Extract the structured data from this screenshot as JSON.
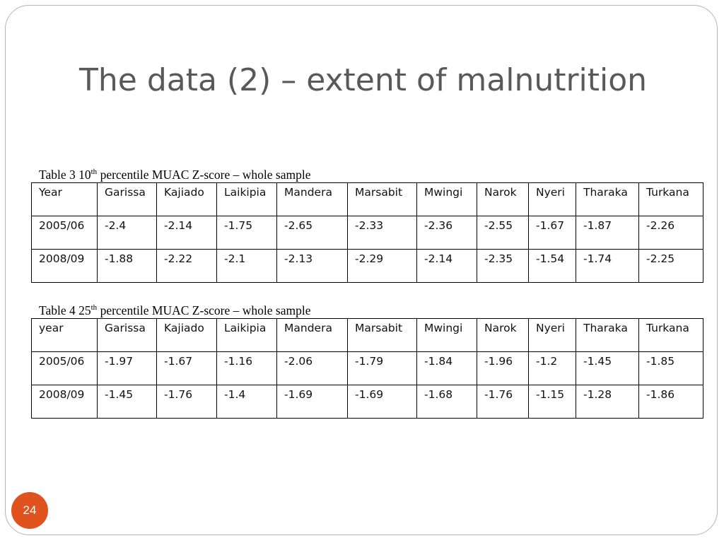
{
  "slide": {
    "title": "The data (2) – extent of malnutrition",
    "page_number": "24"
  },
  "table3": {
    "caption_prefix": "Table 3 10",
    "caption_sup": "th",
    "caption_suffix": " percentile MUAC Z-score – whole sample",
    "columns": [
      "Year",
      "Garissa",
      "Kajiado",
      "Laikipia",
      "Mandera",
      "Marsabit",
      "Mwingi",
      "Narok",
      "Nyeri",
      "Tharaka",
      "Turkana"
    ],
    "rows": [
      [
        "2005/06",
        "-2.4",
        "-2.14",
        "-1.75",
        "-2.65",
        "-2.33",
        "-2.36",
        "-2.55",
        "-1.67",
        "-1.87",
        "-2.26"
      ],
      [
        "2008/09",
        "-1.88",
        "-2.22",
        "-2.1",
        "-2.13",
        "-2.29",
        "-2.14",
        "-2.35",
        "-1.54",
        "-1.74",
        "-2.25"
      ]
    ]
  },
  "table4": {
    "caption_prefix": "Table 4 25",
    "caption_sup": "th",
    "caption_suffix": " percentile MUAC Z-score – whole sample",
    "columns": [
      "year",
      "Garissa",
      "Kajiado",
      "Laikipia",
      "Mandera",
      "Marsabit",
      "Mwingi",
      "Narok",
      "Nyeri",
      "Tharaka",
      "Turkana"
    ],
    "rows": [
      [
        "2005/06",
        "-1.97",
        "-1.67",
        "-1.16",
        "-2.06",
        "-1.79",
        "-1.84",
        "-1.96",
        "-1.2",
        "-1.45",
        "-1.85"
      ],
      [
        "2008/09",
        "-1.45",
        "-1.76",
        "-1.4",
        "-1.69",
        "-1.69",
        "-1.68",
        "-1.76",
        "-1.15",
        "-1.28",
        "-1.86"
      ]
    ]
  }
}
